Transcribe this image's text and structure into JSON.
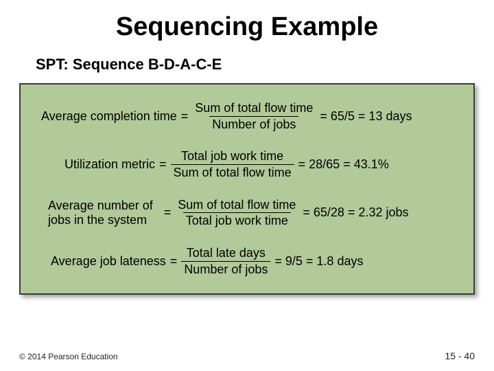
{
  "title": "Sequencing Example",
  "subtitle": "SPT: Sequence B-D-A-C-E",
  "box": {
    "background_color": "#b2c99a",
    "border_color": "#3a3a3a"
  },
  "formulas": [
    {
      "lhs": "Average completion time",
      "numerator": "Sum of total flow time",
      "denominator": "Number of jobs",
      "rhs": "= 65/5 = 13 days"
    },
    {
      "lhs": "Utilization metric",
      "numerator": "Total job work time",
      "denominator": "Sum of total flow time",
      "rhs": "= 28/65 = 43.1%"
    },
    {
      "lhs_line1": "Average number of",
      "lhs_line2": "jobs in the system",
      "numerator": "Sum of total flow time",
      "denominator": "Total job work time",
      "rhs": "= 65/28 = 2.32 jobs"
    },
    {
      "lhs": "Average job lateness",
      "numerator": "Total late days",
      "denominator": "Number of jobs",
      "rhs": "= 9/5 = 1.8 days"
    }
  ],
  "footer": {
    "copyright": "© 2014 Pearson Education",
    "page": "15 - 40"
  }
}
